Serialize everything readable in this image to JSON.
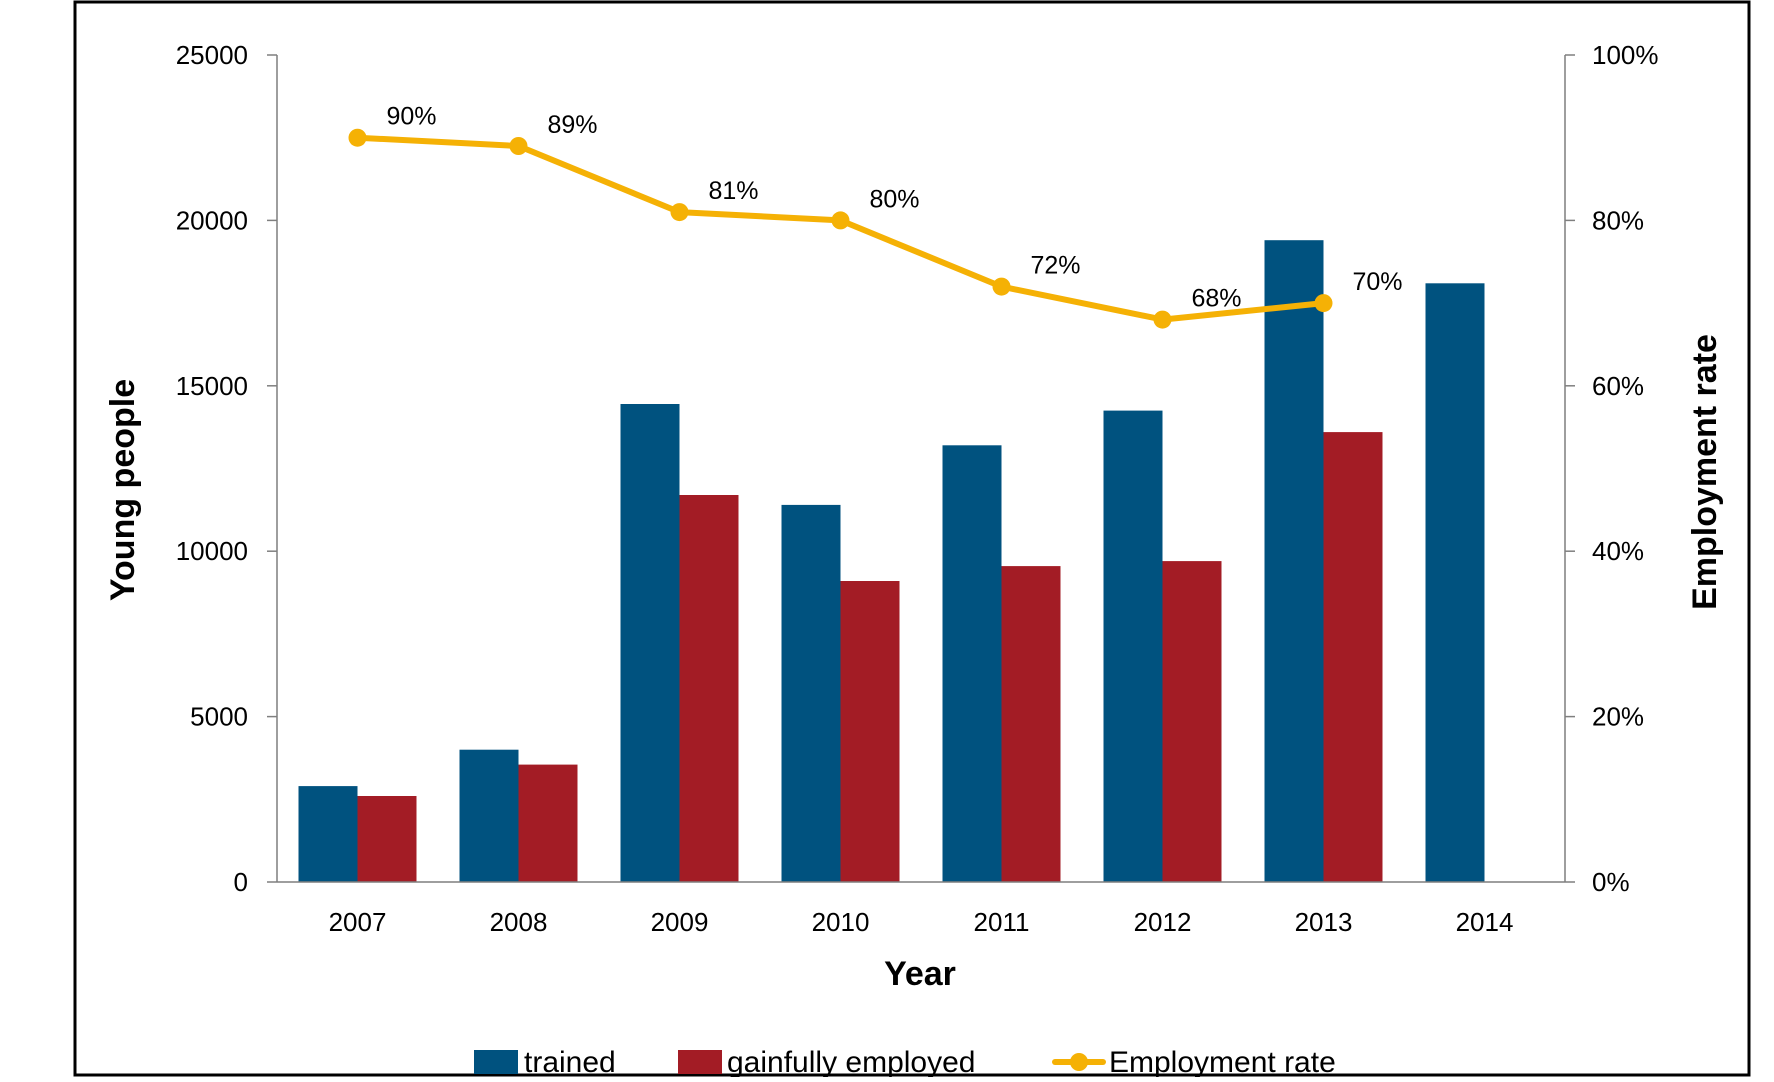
{
  "chart_data": {
    "type": "bar",
    "title": "",
    "xlabel": "Year",
    "ylabel": "Young people",
    "y2label": "Employment rate",
    "categories": [
      "2007",
      "2008",
      "2009",
      "2010",
      "2011",
      "2012",
      "2013",
      "2014"
    ],
    "ylim": [
      0,
      25000
    ],
    "y_ticks": [
      "0",
      "5000",
      "10000",
      "15000",
      "20000",
      "25000"
    ],
    "y2lim": [
      0,
      100
    ],
    "y2_ticks": [
      "0%",
      "20%",
      "40%",
      "60%",
      "80%",
      "100%"
    ],
    "grid": false,
    "legend_position": "bottom",
    "series": [
      {
        "name": "trained",
        "kind": "bar",
        "axis": "left",
        "color": "#00527f",
        "values": [
          2900,
          4000,
          14450,
          11400,
          13200,
          14250,
          19400,
          18100
        ]
      },
      {
        "name": "gainfully employed",
        "kind": "bar",
        "axis": "left",
        "color": "#a31c25",
        "values": [
          2600,
          3550,
          11700,
          9100,
          9550,
          9700,
          13600,
          null
        ]
      },
      {
        "name": "Employment rate",
        "kind": "line",
        "axis": "right",
        "color": "#f5b105",
        "values": [
          90,
          89,
          81,
          80,
          72,
          68,
          70,
          null
        ],
        "labels": [
          "90%",
          "89%",
          "81%",
          "80%",
          "72%",
          "68%",
          "70%",
          ""
        ]
      }
    ]
  }
}
